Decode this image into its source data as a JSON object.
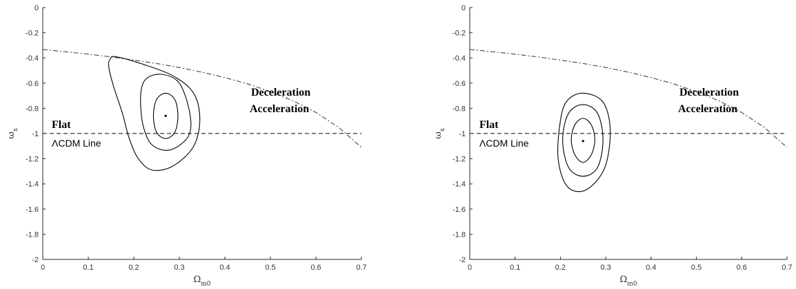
{
  "chart_data": [
    {
      "type": "line",
      "xlabel": {
        "main": "Ω",
        "sub": "m0"
      },
      "ylabel": {
        "main": "ω",
        "sub": "x"
      },
      "xlim": [
        0,
        0.7
      ],
      "ylim": [
        -2,
        0
      ],
      "xticks": [
        "0",
        "0.1",
        "0.2",
        "0.3",
        "0.4",
        "0.5",
        "0.6",
        "0.7"
      ],
      "yticks": [
        "0",
        "-0.2",
        "-0.4",
        "-0.6",
        "-0.8",
        "-1",
        "-1.2",
        "-1.4",
        "-1.6",
        "-1.8",
        "-2"
      ],
      "grid": false,
      "annotations": {
        "flat": "Flat",
        "lcdm": "ΛCDM Line",
        "deceleration": "Deceleration",
        "acceleration": "Acceleration"
      },
      "transition_curve": {
        "x": [
          0,
          0.05,
          0.1,
          0.15,
          0.2,
          0.25,
          0.3,
          0.35,
          0.4,
          0.45,
          0.5,
          0.55,
          0.6,
          0.65,
          0.7
        ],
        "y": [
          -0.333,
          -0.351,
          -0.37,
          -0.392,
          -0.417,
          -0.444,
          -0.476,
          -0.513,
          -0.556,
          -0.606,
          -0.667,
          -0.741,
          -0.833,
          -0.952,
          -1.111
        ]
      },
      "flat_lcdm_line": {
        "x": [
          0,
          0.7
        ],
        "y": [
          -1,
          -1
        ]
      },
      "best_fit": {
        "x": 0.27,
        "y": -0.86
      },
      "contours": [
        {
          "x": [
            0.27,
            0.29,
            0.297,
            0.29,
            0.27,
            0.25,
            0.243,
            0.25,
            0.27
          ],
          "y": [
            -0.68,
            -0.73,
            -0.86,
            -0.99,
            -1.04,
            -0.99,
            -0.86,
            -0.73,
            -0.68
          ]
        },
        {
          "x": [
            0.26,
            0.3,
            0.323,
            0.32,
            0.28,
            0.24,
            0.22,
            0.215,
            0.226,
            0.26
          ],
          "y": [
            -0.53,
            -0.6,
            -0.84,
            -1.02,
            -1.13,
            -1.09,
            -0.93,
            -0.7,
            -0.57,
            -0.53
          ]
        },
        {
          "x": [
            0.16,
            0.22,
            0.29,
            0.333,
            0.345,
            0.33,
            0.285,
            0.24,
            0.21,
            0.19,
            0.175,
            0.155,
            0.145,
            0.148,
            0.16
          ],
          "y": [
            -0.39,
            -0.45,
            -0.55,
            -0.69,
            -0.9,
            -1.11,
            -1.26,
            -1.29,
            -1.2,
            -1.04,
            -0.84,
            -0.62,
            -0.47,
            -0.41,
            -0.39
          ]
        }
      ]
    },
    {
      "type": "line",
      "xlabel": {
        "main": "Ω",
        "sub": "m0"
      },
      "ylabel": {
        "main": "ω",
        "sub": "x"
      },
      "xlim": [
        0,
        0.7
      ],
      "ylim": [
        -2,
        0
      ],
      "xticks": [
        "0",
        "0.1",
        "0.2",
        "0.3",
        "0.4",
        "0.5",
        "0.6",
        "0.7"
      ],
      "yticks": [
        "0",
        "-0.2",
        "-0.4",
        "-0.6",
        "-0.8",
        "-1",
        "-1.2",
        "-1.4",
        "-1.6",
        "-1.8",
        "-2"
      ],
      "grid": false,
      "annotations": {
        "flat": "Flat",
        "lcdm": "ΛCDM Line",
        "deceleration": "Deceleration",
        "acceleration": "Acceleration"
      },
      "transition_curve": {
        "x": [
          0,
          0.05,
          0.1,
          0.15,
          0.2,
          0.25,
          0.3,
          0.35,
          0.4,
          0.45,
          0.5,
          0.55,
          0.6,
          0.65,
          0.7
        ],
        "y": [
          -0.333,
          -0.351,
          -0.37,
          -0.392,
          -0.417,
          -0.444,
          -0.476,
          -0.513,
          -0.556,
          -0.606,
          -0.667,
          -0.741,
          -0.833,
          -0.952,
          -1.111
        ]
      },
      "flat_lcdm_line": {
        "x": [
          0,
          0.7
        ],
        "y": [
          -1,
          -1
        ]
      },
      "best_fit": {
        "x": 0.25,
        "y": -1.06
      },
      "contours": [
        {
          "x": [
            0.25,
            0.268,
            0.276,
            0.268,
            0.25,
            0.232,
            0.224,
            0.232,
            0.25
          ],
          "y": [
            -0.88,
            -0.93,
            -1.05,
            -1.17,
            -1.23,
            -1.17,
            -1.05,
            -0.93,
            -0.88
          ]
        },
        {
          "x": [
            0.25,
            0.282,
            0.294,
            0.282,
            0.25,
            0.218,
            0.205,
            0.218,
            0.25
          ],
          "y": [
            -0.77,
            -0.84,
            -1.05,
            -1.27,
            -1.34,
            -1.27,
            -1.05,
            -0.84,
            -0.77
          ]
        },
        {
          "x": [
            0.25,
            0.294,
            0.31,
            0.297,
            0.255,
            0.215,
            0.195,
            0.2,
            0.215,
            0.25
          ],
          "y": [
            -0.68,
            -0.75,
            -0.98,
            -1.28,
            -1.45,
            -1.42,
            -1.2,
            -0.9,
            -0.74,
            -0.68
          ]
        }
      ]
    }
  ]
}
